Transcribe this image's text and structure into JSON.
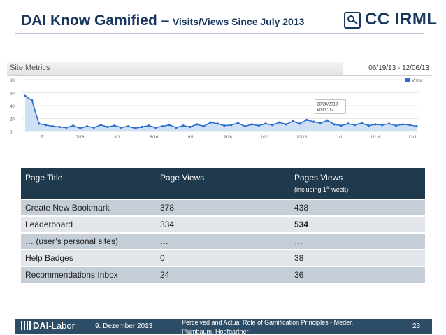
{
  "slide": {
    "title": "DAI Know Gamified –",
    "subtitle": "Visits/Views Since July 2013",
    "logo_text": "CC IRML",
    "page_number": "23"
  },
  "metrics": {
    "title": "Site Metrics",
    "date_range": "06/19/13 - 12/06/13",
    "y_ticks": [
      "80",
      "60",
      "40",
      "20",
      "0"
    ],
    "x_ticks": [
      "7/1",
      "7/16",
      "8/1",
      "8/16",
      "9/1",
      "9/16",
      "10/1",
      "10/16",
      "11/1",
      "11/16",
      "12/1"
    ],
    "legend": "Visits",
    "tooltip_date": "10/28/2013",
    "tooltip_value": "Visits: 17",
    "line_color": "#2a6dcb",
    "fill_color": "#cfe0f6"
  },
  "chart_data": {
    "type": "area",
    "title": "Site Metrics",
    "series": [
      {
        "name": "Visits",
        "x": [
          "6/19",
          "6/22",
          "6/25",
          "6/28",
          "7/1",
          "7/4",
          "7/7",
          "7/10",
          "7/13",
          "7/16",
          "7/19",
          "7/22",
          "7/25",
          "7/28",
          "7/31",
          "8/3",
          "8/6",
          "8/9",
          "8/12",
          "8/15",
          "8/18",
          "8/21",
          "8/24",
          "8/27",
          "8/30",
          "9/2",
          "9/5",
          "9/8",
          "9/11",
          "9/14",
          "9/17",
          "9/20",
          "9/23",
          "9/26",
          "9/29",
          "10/2",
          "10/5",
          "10/8",
          "10/11",
          "10/14",
          "10/17",
          "10/20",
          "10/23",
          "10/26",
          "10/28",
          "10/31",
          "11/3",
          "11/6",
          "11/9",
          "11/12",
          "11/15",
          "11/18",
          "11/21",
          "11/24",
          "11/27",
          "11/30",
          "12/3",
          "12/6"
        ],
        "values": [
          55,
          48,
          12,
          10,
          8,
          7,
          6,
          9,
          5,
          8,
          6,
          10,
          7,
          9,
          6,
          8,
          5,
          7,
          9,
          6,
          8,
          10,
          6,
          9,
          7,
          11,
          8,
          14,
          12,
          9,
          10,
          13,
          8,
          11,
          9,
          12,
          10,
          14,
          11,
          16,
          12,
          18,
          15,
          13,
          17,
          11,
          9,
          12,
          10,
          13,
          9,
          11,
          10,
          12,
          9,
          11,
          10,
          8
        ]
      }
    ],
    "ylim": [
      0,
      80
    ],
    "y_ticks": [
      0,
      20,
      40,
      60,
      80
    ],
    "annotations": [
      {
        "x": "10/28/2013",
        "text": "Visits: 17"
      }
    ],
    "legend": "top-right"
  },
  "table": {
    "headers": {
      "title": "Page Title",
      "views": "Page Views",
      "pages_views": "Pages Views",
      "pages_views_note_pre": "(including 1",
      "pages_views_note_sup": "st",
      "pages_views_note_post": " week)"
    },
    "rows": [
      {
        "title": "Create New Bookmark",
        "views": "378",
        "pages_views": "438"
      },
      {
        "title": "Leaderboard",
        "views": "334",
        "pages_views": "534"
      },
      {
        "title": "… (user’s personal sites)",
        "views": "…",
        "pages_views": "…"
      },
      {
        "title": "Help Badges",
        "views": "0",
        "pages_views": "38"
      },
      {
        "title": "Recommendations Inbox",
        "views": "24",
        "pages_views": "36"
      }
    ]
  },
  "footer": {
    "logo_bold": "DAI-",
    "logo_rest": "Labor",
    "date": "9. Dezember 2013",
    "citation": "Perceived and Actual Role of Gamification Principles - Meder, Plumbaum, Hopfgartner"
  }
}
